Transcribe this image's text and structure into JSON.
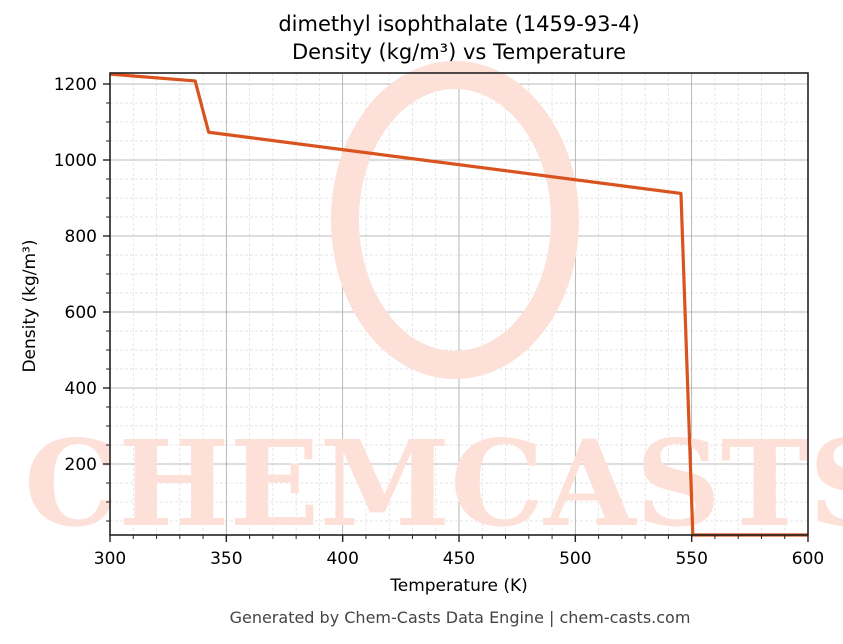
{
  "title_line1": "dimethyl isophthalate (1459-93-4)",
  "title_line2": "Density (kg/m³) vs Temperature",
  "xlabel": "Temperature (K)",
  "ylabel": "Density (kg/m³)",
  "footer": "Generated by Chem-Casts Data Engine | chem-casts.com",
  "watermark": "CHEMCASTS",
  "line_color": "#d9531e",
  "chart_data": {
    "type": "line",
    "title": "dimethyl isophthalate (1459-93-4) Density (kg/m³) vs Temperature",
    "xlabel": "Temperature (K)",
    "ylabel": "Density (kg/m³)",
    "xlim": [
      300,
      600
    ],
    "ylim": [
      0,
      1225
    ],
    "xticks": [
      300,
      350,
      400,
      450,
      500,
      550,
      600
    ],
    "yticks": [
      200,
      400,
      600,
      800,
      1000,
      1200
    ],
    "grid": true,
    "series": [
      {
        "name": "Density",
        "x": [
          300,
          336.6,
          342.4,
          545.4,
          550.5,
          600
        ],
        "y": [
          1226,
          1208,
          1073,
          912,
          1,
          1
        ]
      }
    ]
  }
}
